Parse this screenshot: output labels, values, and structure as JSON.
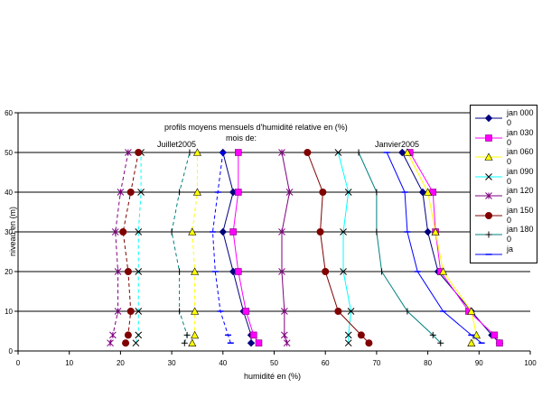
{
  "chart_data": {
    "type": "line",
    "title_line1": "profils moyens mensuels d'humidité relative en (%)",
    "title_line2": "mois de:",
    "annotation_left": "Juillet2005",
    "annotation_right": "Janvier2005",
    "xlabel": "humidité en (%)",
    "ylabel": "niveau en (m)",
    "xlim": [
      0,
      100
    ],
    "ylim": [
      0,
      60
    ],
    "xticks": [
      "0",
      "10",
      "20",
      "30",
      "40",
      "50",
      "60",
      "70",
      "80",
      "90",
      "100"
    ],
    "yticks": [
      "0",
      "10",
      "20",
      "30",
      "40",
      "50",
      "60"
    ],
    "grid": "horizontal",
    "legend_position": "right",
    "levels": [
      2,
      4,
      10,
      20,
      30,
      40,
      50
    ],
    "series": [
      {
        "name": "jan 0000",
        "color": "#00007f",
        "marker": "diamond",
        "dash": "",
        "x": [
          94,
          92.5,
          88.5,
          82,
          80,
          79,
          75
        ]
      },
      {
        "name": "jan 0300",
        "color": "#ff00ff",
        "marker": "square",
        "dash": "",
        "x": [
          94,
          93,
          88,
          82.5,
          81.5,
          81,
          76.5
        ]
      },
      {
        "name": "jan 0600",
        "color": "#ffff00",
        "marker": "triangle",
        "dash": "",
        "x": [
          88.5,
          89.5,
          88.5,
          83,
          81.5,
          80,
          76
        ]
      },
      {
        "name": "jan 0900",
        "color": "#00ffff",
        "marker": "x",
        "dash": "",
        "x": [
          64.5,
          64.5,
          65,
          63.5,
          63.5,
          64.5,
          62.5
        ]
      },
      {
        "name": "jan 1200",
        "color": "#800080",
        "marker": "star",
        "dash": "",
        "x": [
          52.5,
          52,
          52,
          51.5,
          51.5,
          53,
          51.5
        ]
      },
      {
        "name": "jan 1500",
        "color": "#800000",
        "marker": "circle",
        "dash": "",
        "x": [
          68.5,
          67,
          62.5,
          60,
          59,
          59.5,
          56.5
        ]
      },
      {
        "name": "jan 1800",
        "color": "#008080",
        "marker": "plus",
        "dash": "",
        "x": [
          82.5,
          81,
          76,
          71,
          70,
          70,
          66.5
        ]
      },
      {
        "name": "ja",
        "color": "#0000ff",
        "marker": "dash",
        "dash": "",
        "x": [
          90.5,
          88.5,
          83,
          78,
          76,
          75.5,
          72
        ]
      },
      {
        "name": "",
        "color": "#00007f",
        "marker": "diamond",
        "dash": "",
        "x": [
          45.5,
          45.5,
          44,
          42,
          40,
          42,
          40
        ]
      },
      {
        "name": "",
        "color": "#ff00ff",
        "marker": "square",
        "dash": "",
        "x": [
          47,
          46,
          44.5,
          43,
          42,
          43,
          43
        ]
      },
      {
        "name": "",
        "color": "#ffff00",
        "marker": "triangle",
        "dash": "4,3",
        "x": [
          34,
          34.5,
          34.5,
          34.5,
          34,
          35,
          35
        ]
      },
      {
        "name": "",
        "color": "#00ffff",
        "marker": "x",
        "dash": "4,3",
        "x": [
          23,
          23.5,
          23.5,
          23.5,
          23.5,
          24,
          24
        ]
      },
      {
        "name": "",
        "color": "#800080",
        "marker": "star",
        "dash": "4,3",
        "x": [
          18,
          18.5,
          19.5,
          19.5,
          19,
          20,
          21.5
        ]
      },
      {
        "name": "",
        "color": "#800000",
        "marker": "circle",
        "dash": "4,3",
        "x": [
          21,
          21.5,
          22,
          21.5,
          20.5,
          22,
          23.5
        ]
      },
      {
        "name": "",
        "color": "#008080",
        "marker": "plus",
        "dash": "4,3",
        "x": [
          32.5,
          33,
          31.5,
          31.5,
          30,
          31.5,
          33.5
        ]
      },
      {
        "name": "",
        "color": "#0000ff",
        "marker": "dash",
        "dash": "4,3",
        "x": [
          41.5,
          41,
          39.5,
          38.5,
          38,
          39,
          40
        ]
      }
    ]
  }
}
